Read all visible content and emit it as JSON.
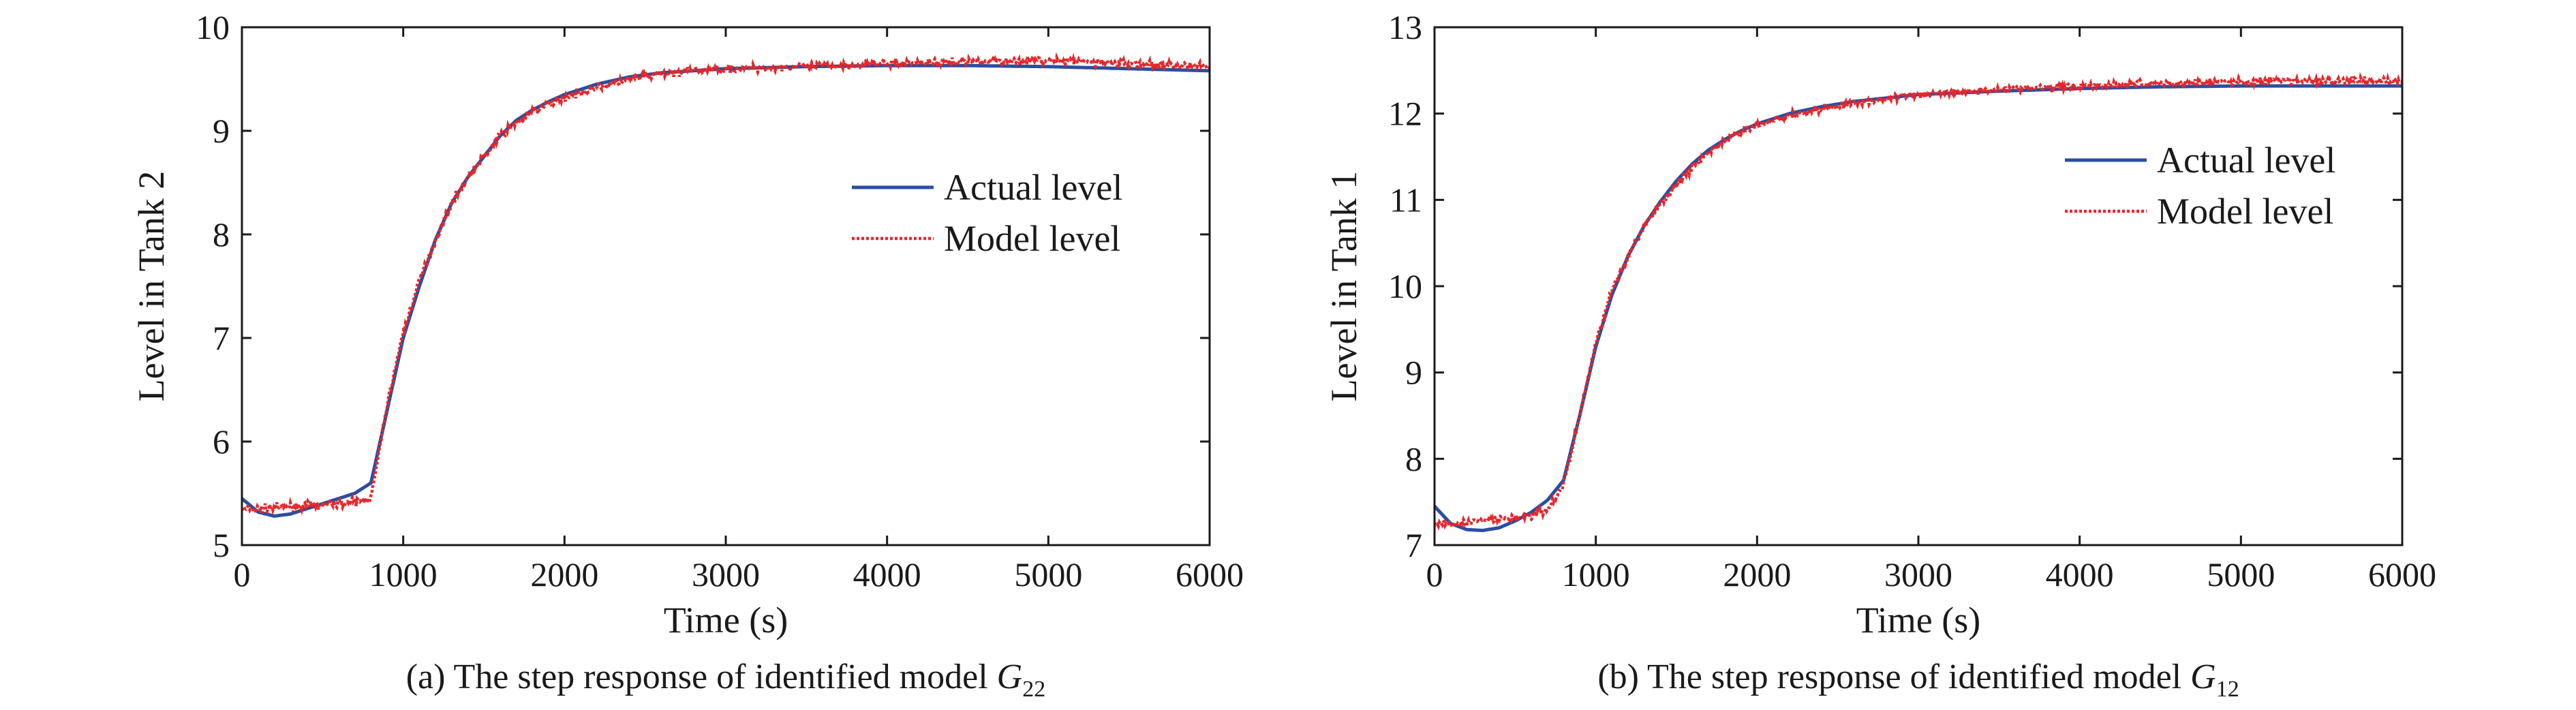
{
  "chart_data": [
    {
      "type": "line",
      "caption": "(a) The step response of identified model ",
      "caption_symbol": "G",
      "caption_subscript": "22",
      "xlabel": "Time (s)",
      "ylabel": "Level in Tank 2",
      "xlim": [
        0,
        6000
      ],
      "ylim": [
        5,
        10
      ],
      "xticks": [
        0,
        1000,
        2000,
        3000,
        4000,
        5000,
        6000
      ],
      "yticks": [
        5,
        6,
        7,
        8,
        9,
        10
      ],
      "legend_position": "right",
      "series": [
        {
          "name": "Actual level",
          "color": "#2a4ea0",
          "style": "solid",
          "x": [
            0,
            100,
            200,
            300,
            400,
            500,
            600,
            700,
            800,
            900,
            1000,
            1100,
            1200,
            1300,
            1400,
            1500,
            1600,
            1700,
            1800,
            1900,
            2000,
            2200,
            2400,
            2600,
            2800,
            3000,
            3500,
            4000,
            4500,
            5000,
            5500,
            6000
          ],
          "y": [
            5.45,
            5.32,
            5.28,
            5.3,
            5.35,
            5.4,
            5.45,
            5.5,
            5.6,
            6.3,
            7.0,
            7.5,
            7.95,
            8.3,
            8.55,
            8.75,
            8.95,
            9.1,
            9.2,
            9.28,
            9.35,
            9.45,
            9.52,
            9.56,
            9.58,
            9.6,
            9.62,
            9.63,
            9.63,
            9.62,
            9.6,
            9.58
          ]
        },
        {
          "name": "Model level",
          "color": "#e8262a",
          "style": "dotted",
          "x": [
            0,
            100,
            200,
            300,
            400,
            500,
            600,
            700,
            800,
            900,
            1000,
            1100,
            1200,
            1300,
            1400,
            1500,
            1600,
            1700,
            1800,
            1900,
            2000,
            2200,
            2400,
            2600,
            2800,
            3000,
            3500,
            4000,
            4500,
            5000,
            5500,
            6000
          ],
          "y": [
            5.35,
            5.35,
            5.36,
            5.37,
            5.38,
            5.39,
            5.4,
            5.42,
            5.45,
            6.35,
            7.05,
            7.55,
            7.95,
            8.3,
            8.55,
            8.75,
            8.95,
            9.08,
            9.18,
            9.26,
            9.32,
            9.42,
            9.5,
            9.55,
            9.58,
            9.6,
            9.62,
            9.65,
            9.67,
            9.68,
            9.65,
            9.62
          ]
        }
      ]
    },
    {
      "type": "line",
      "caption": "(b) The step response of identified model ",
      "caption_symbol": "G",
      "caption_subscript": "12",
      "xlabel": "Time (s)",
      "ylabel": "Level in Tank 1",
      "xlim": [
        0,
        6000
      ],
      "ylim": [
        7,
        13
      ],
      "xticks": [
        0,
        1000,
        2000,
        3000,
        4000,
        5000,
        6000
      ],
      "yticks": [
        7,
        8,
        9,
        10,
        11,
        12,
        13
      ],
      "legend_position": "top-right",
      "series": [
        {
          "name": "Actual level",
          "color": "#2a4ea0",
          "style": "solid",
          "x": [
            0,
            100,
            200,
            300,
            400,
            500,
            600,
            700,
            800,
            900,
            1000,
            1100,
            1200,
            1300,
            1400,
            1500,
            1600,
            1700,
            1800,
            1900,
            2000,
            2200,
            2400,
            2600,
            2800,
            3000,
            3500,
            4000,
            4500,
            5000,
            5500,
            6000
          ],
          "y": [
            7.45,
            7.25,
            7.18,
            7.17,
            7.2,
            7.28,
            7.38,
            7.52,
            7.75,
            8.5,
            9.3,
            9.9,
            10.35,
            10.7,
            10.98,
            11.22,
            11.42,
            11.58,
            11.7,
            11.8,
            11.88,
            12.0,
            12.08,
            12.14,
            12.18,
            12.22,
            12.26,
            12.29,
            12.31,
            12.32,
            12.32,
            12.32
          ]
        },
        {
          "name": "Model level",
          "color": "#e8262a",
          "style": "dotted",
          "x": [
            0,
            100,
            200,
            300,
            400,
            500,
            600,
            700,
            800,
            900,
            1000,
            1100,
            1200,
            1300,
            1400,
            1500,
            1600,
            1700,
            1800,
            1900,
            2000,
            2200,
            2400,
            2600,
            2800,
            3000,
            3500,
            4000,
            4500,
            5000,
            5500,
            6000
          ],
          "y": [
            7.25,
            7.25,
            7.26,
            7.28,
            7.3,
            7.32,
            7.34,
            7.4,
            7.7,
            8.5,
            9.35,
            9.95,
            10.35,
            10.7,
            10.95,
            11.18,
            11.38,
            11.55,
            11.68,
            11.78,
            11.86,
            11.98,
            12.06,
            12.12,
            12.17,
            12.22,
            12.28,
            12.32,
            12.35,
            12.37,
            12.38,
            12.38
          ]
        }
      ]
    }
  ]
}
